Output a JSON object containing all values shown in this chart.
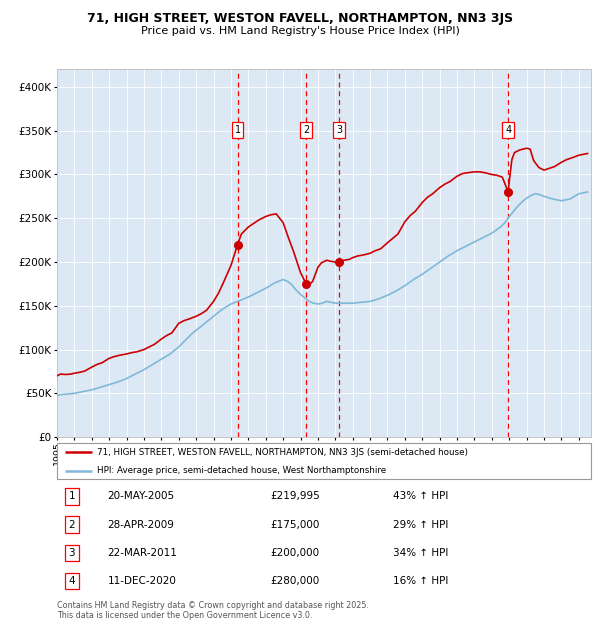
{
  "title": "71, HIGH STREET, WESTON FAVELL, NORTHAMPTON, NN3 3JS",
  "subtitle": "Price paid vs. HM Land Registry's House Price Index (HPI)",
  "legend_line1": "71, HIGH STREET, WESTON FAVELL, NORTHAMPTON, NN3 3JS (semi-detached house)",
  "legend_line2": "HPI: Average price, semi-detached house, West Northamptonshire",
  "footer1": "Contains HM Land Registry data © Crown copyright and database right 2025.",
  "footer2": "This data is licensed under the Open Government Licence v3.0.",
  "hpi_color": "#7fb8d8",
  "price_color": "#cc0000",
  "bg_color": "#dce9f5",
  "ylim": [
    0,
    420000
  ],
  "yticks": [
    0,
    50000,
    100000,
    150000,
    200000,
    250000,
    300000,
    350000,
    400000
  ],
  "xlim_start": 1995.0,
  "xlim_end": 2025.7,
  "transactions": [
    {
      "num": 1,
      "date": "20-MAY-2005",
      "price": 219995,
      "price_str": "£219,995",
      "pct": "43%",
      "x": 2005.38
    },
    {
      "num": 2,
      "date": "28-APR-2009",
      "price": 175000,
      "price_str": "£175,000",
      "pct": "29%",
      "x": 2009.32
    },
    {
      "num": 3,
      "date": "22-MAR-2011",
      "price": 200000,
      "price_str": "£200,000",
      "pct": "34%",
      "x": 2011.22
    },
    {
      "num": 4,
      "date": "11-DEC-2020",
      "price": 280000,
      "price_str": "£280,000",
      "pct": "16%",
      "x": 2020.94
    }
  ],
  "hpi_data": [
    [
      1995.0,
      48000
    ],
    [
      1995.25,
      48500
    ],
    [
      1995.5,
      49000
    ],
    [
      1995.75,
      49500
    ],
    [
      1996.0,
      50000
    ],
    [
      1996.25,
      51000
    ],
    [
      1996.5,
      52000
    ],
    [
      1996.75,
      53000
    ],
    [
      1997.0,
      54000
    ],
    [
      1997.25,
      55500
    ],
    [
      1997.5,
      57000
    ],
    [
      1997.75,
      58500
    ],
    [
      1998.0,
      60000
    ],
    [
      1998.25,
      61500
    ],
    [
      1998.5,
      63000
    ],
    [
      1998.75,
      65000
    ],
    [
      1999.0,
      67000
    ],
    [
      1999.25,
      69500
    ],
    [
      1999.5,
      72000
    ],
    [
      1999.75,
      74500
    ],
    [
      2000.0,
      77000
    ],
    [
      2000.25,
      80000
    ],
    [
      2000.5,
      83000
    ],
    [
      2000.75,
      86000
    ],
    [
      2001.0,
      89000
    ],
    [
      2001.25,
      92000
    ],
    [
      2001.5,
      95000
    ],
    [
      2001.75,
      99000
    ],
    [
      2002.0,
      103000
    ],
    [
      2002.25,
      108000
    ],
    [
      2002.5,
      113000
    ],
    [
      2002.75,
      118000
    ],
    [
      2003.0,
      122000
    ],
    [
      2003.25,
      126000
    ],
    [
      2003.5,
      130000
    ],
    [
      2003.75,
      134000
    ],
    [
      2004.0,
      138000
    ],
    [
      2004.25,
      142000
    ],
    [
      2004.5,
      146000
    ],
    [
      2004.75,
      149000
    ],
    [
      2005.0,
      152000
    ],
    [
      2005.25,
      154000
    ],
    [
      2005.5,
      156000
    ],
    [
      2005.75,
      158000
    ],
    [
      2006.0,
      160000
    ],
    [
      2006.25,
      162500
    ],
    [
      2006.5,
      165000
    ],
    [
      2006.75,
      167500
    ],
    [
      2007.0,
      170000
    ],
    [
      2007.25,
      173000
    ],
    [
      2007.5,
      176000
    ],
    [
      2007.75,
      178000
    ],
    [
      2008.0,
      180000
    ],
    [
      2008.25,
      178000
    ],
    [
      2008.5,
      174000
    ],
    [
      2008.75,
      168000
    ],
    [
      2009.0,
      163000
    ],
    [
      2009.25,
      159000
    ],
    [
      2009.5,
      155000
    ],
    [
      2009.75,
      153000
    ],
    [
      2010.0,
      152000
    ],
    [
      2010.25,
      153000
    ],
    [
      2010.5,
      155000
    ],
    [
      2010.75,
      154000
    ],
    [
      2011.0,
      153000
    ],
    [
      2011.25,
      153000
    ],
    [
      2011.5,
      153000
    ],
    [
      2011.75,
      153000
    ],
    [
      2012.0,
      153000
    ],
    [
      2012.25,
      153500
    ],
    [
      2012.5,
      154000
    ],
    [
      2012.75,
      154500
    ],
    [
      2013.0,
      155000
    ],
    [
      2013.25,
      156500
    ],
    [
      2013.5,
      158000
    ],
    [
      2013.75,
      160000
    ],
    [
      2014.0,
      162000
    ],
    [
      2014.25,
      164500
    ],
    [
      2014.5,
      167000
    ],
    [
      2014.75,
      170000
    ],
    [
      2015.0,
      173000
    ],
    [
      2015.25,
      176500
    ],
    [
      2015.5,
      180000
    ],
    [
      2015.75,
      183000
    ],
    [
      2016.0,
      186000
    ],
    [
      2016.25,
      189500
    ],
    [
      2016.5,
      193000
    ],
    [
      2016.75,
      196500
    ],
    [
      2017.0,
      200000
    ],
    [
      2017.25,
      203500
    ],
    [
      2017.5,
      207000
    ],
    [
      2017.75,
      210000
    ],
    [
      2018.0,
      213000
    ],
    [
      2018.25,
      215500
    ],
    [
      2018.5,
      218000
    ],
    [
      2018.75,
      220500
    ],
    [
      2019.0,
      223000
    ],
    [
      2019.25,
      225500
    ],
    [
      2019.5,
      228000
    ],
    [
      2019.75,
      230500
    ],
    [
      2020.0,
      233000
    ],
    [
      2020.25,
      236500
    ],
    [
      2020.5,
      240000
    ],
    [
      2020.75,
      245000
    ],
    [
      2021.0,
      252000
    ],
    [
      2021.25,
      258000
    ],
    [
      2021.5,
      264000
    ],
    [
      2021.75,
      269000
    ],
    [
      2022.0,
      273000
    ],
    [
      2022.25,
      276000
    ],
    [
      2022.5,
      278000
    ],
    [
      2022.75,
      277000
    ],
    [
      2023.0,
      275000
    ],
    [
      2023.25,
      273500
    ],
    [
      2023.5,
      272000
    ],
    [
      2023.75,
      271000
    ],
    [
      2024.0,
      270000
    ],
    [
      2024.25,
      271000
    ],
    [
      2024.5,
      272000
    ],
    [
      2024.75,
      275000
    ],
    [
      2025.0,
      278000
    ],
    [
      2025.5,
      280000
    ]
  ],
  "price_data": [
    [
      1995.0,
      70000
    ],
    [
      1995.2,
      72000
    ],
    [
      1995.5,
      71500
    ],
    [
      1995.8,
      72000
    ],
    [
      1996.0,
      73000
    ],
    [
      1996.3,
      74000
    ],
    [
      1996.6,
      75500
    ],
    [
      1997.0,
      80000
    ],
    [
      1997.3,
      83000
    ],
    [
      1997.6,
      85000
    ],
    [
      1998.0,
      90000
    ],
    [
      1998.3,
      92000
    ],
    [
      1998.6,
      93500
    ],
    [
      1999.0,
      95000
    ],
    [
      1999.3,
      96500
    ],
    [
      1999.6,
      97500
    ],
    [
      2000.0,
      100000
    ],
    [
      2000.3,
      103000
    ],
    [
      2000.6,
      106000
    ],
    [
      2001.0,
      112000
    ],
    [
      2001.3,
      116000
    ],
    [
      2001.6,
      119000
    ],
    [
      2002.0,
      130000
    ],
    [
      2002.3,
      133000
    ],
    [
      2002.6,
      135000
    ],
    [
      2003.0,
      138000
    ],
    [
      2003.3,
      141000
    ],
    [
      2003.6,
      145000
    ],
    [
      2004.0,
      155000
    ],
    [
      2004.3,
      165000
    ],
    [
      2004.6,
      178000
    ],
    [
      2005.0,
      196000
    ],
    [
      2005.38,
      219995
    ],
    [
      2005.6,
      232000
    ],
    [
      2006.0,
      240000
    ],
    [
      2006.3,
      244000
    ],
    [
      2006.6,
      248000
    ],
    [
      2007.0,
      252000
    ],
    [
      2007.3,
      254000
    ],
    [
      2007.6,
      255000
    ],
    [
      2008.0,
      245000
    ],
    [
      2008.3,
      228000
    ],
    [
      2008.6,
      212000
    ],
    [
      2009.0,
      188000
    ],
    [
      2009.32,
      175000
    ],
    [
      2009.5,
      174000
    ],
    [
      2009.7,
      178000
    ],
    [
      2010.0,
      194000
    ],
    [
      2010.2,
      199000
    ],
    [
      2010.3,
      200000
    ],
    [
      2010.5,
      202000
    ],
    [
      2010.7,
      201000
    ],
    [
      2011.0,
      200000
    ],
    [
      2011.22,
      200000
    ],
    [
      2011.5,
      202000
    ],
    [
      2011.8,
      203000
    ],
    [
      2012.0,
      205000
    ],
    [
      2012.3,
      207000
    ],
    [
      2012.6,
      208000
    ],
    [
      2013.0,
      210000
    ],
    [
      2013.3,
      213000
    ],
    [
      2013.6,
      215000
    ],
    [
      2014.0,
      222000
    ],
    [
      2014.3,
      227000
    ],
    [
      2014.6,
      232000
    ],
    [
      2015.0,
      246000
    ],
    [
      2015.3,
      253000
    ],
    [
      2015.6,
      258000
    ],
    [
      2016.0,
      268000
    ],
    [
      2016.3,
      274000
    ],
    [
      2016.6,
      278000
    ],
    [
      2017.0,
      285000
    ],
    [
      2017.3,
      289000
    ],
    [
      2017.6,
      292000
    ],
    [
      2018.0,
      298000
    ],
    [
      2018.3,
      301000
    ],
    [
      2018.6,
      302000
    ],
    [
      2019.0,
      303000
    ],
    [
      2019.3,
      303000
    ],
    [
      2019.6,
      302000
    ],
    [
      2020.0,
      300000
    ],
    [
      2020.3,
      299000
    ],
    [
      2020.6,
      297000
    ],
    [
      2020.94,
      280000
    ],
    [
      2021.0,
      292000
    ],
    [
      2021.15,
      317000
    ],
    [
      2021.3,
      325000
    ],
    [
      2021.6,
      328000
    ],
    [
      2022.0,
      330000
    ],
    [
      2022.2,
      329000
    ],
    [
      2022.4,
      316000
    ],
    [
      2022.7,
      308000
    ],
    [
      2023.0,
      305000
    ],
    [
      2023.3,
      307000
    ],
    [
      2023.6,
      309000
    ],
    [
      2024.0,
      314000
    ],
    [
      2024.3,
      317000
    ],
    [
      2024.6,
      319000
    ],
    [
      2025.0,
      322000
    ],
    [
      2025.5,
      324000
    ]
  ]
}
